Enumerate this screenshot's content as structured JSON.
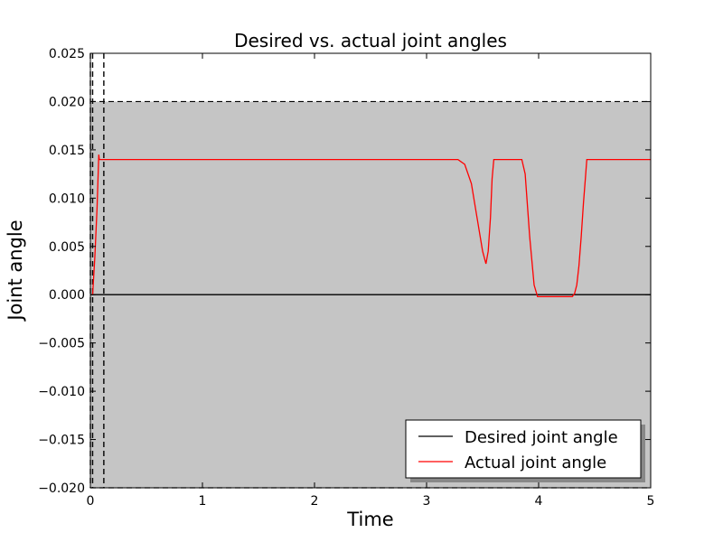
{
  "chart_data": {
    "type": "line",
    "title": "Desired vs. actual joint angles",
    "xlabel": "Time",
    "ylabel": "Joint angle",
    "xlim": [
      0,
      5
    ],
    "ylim": [
      -0.02,
      0.025
    ],
    "xticks": [
      "0",
      "1",
      "2",
      "3",
      "4",
      "5"
    ],
    "yticks": [
      "−0.020",
      "−0.015",
      "−0.010",
      "−0.005",
      "0.000",
      "0.005",
      "0.010",
      "0.015",
      "0.020",
      "0.025"
    ],
    "ytick_values": [
      -0.02,
      -0.015,
      -0.01,
      -0.005,
      0.0,
      0.005,
      0.01,
      0.015,
      0.02,
      0.025
    ],
    "xtick_values": [
      0,
      1,
      2,
      3,
      4,
      5
    ],
    "grid": false,
    "legend_position": "bottom-right",
    "shaded_band": {
      "x_from": 0.0,
      "x_to": 5.0,
      "y_from": -0.02,
      "y_to": 0.02,
      "color": "#c5c5c5"
    },
    "reference_lines": {
      "horizontal_dashed_y": [
        0.02,
        -0.02
      ],
      "vertical_dashed_x": [
        0.0,
        0.02,
        0.12
      ]
    },
    "series": [
      {
        "name": "Desired joint angle",
        "color": "#000000",
        "x": [
          0,
          5
        ],
        "y": [
          0.0,
          0.0
        ]
      },
      {
        "name": "Actual joint angle",
        "color": "#ff0000",
        "x": [
          0.02,
          0.04,
          0.06,
          0.075,
          0.08,
          0.09,
          0.1,
          0.5,
          1.0,
          1.5,
          2.0,
          2.5,
          3.0,
          3.1,
          3.2,
          3.28,
          3.34,
          3.4,
          3.45,
          3.5,
          3.53,
          3.55,
          3.57,
          3.585,
          3.6,
          3.7,
          3.8,
          3.85,
          3.88,
          3.92,
          3.96,
          3.99,
          4.1,
          4.2,
          4.3,
          4.32,
          4.34,
          4.36,
          4.38,
          4.4,
          4.42,
          4.43,
          4.45,
          4.6,
          4.8,
          5.0
        ],
        "y": [
          0.0,
          0.004,
          0.009,
          0.0145,
          0.014,
          0.014,
          0.014,
          0.014,
          0.014,
          0.014,
          0.014,
          0.014,
          0.014,
          0.014,
          0.014,
          0.014,
          0.0135,
          0.0115,
          0.008,
          0.0045,
          0.0032,
          0.0045,
          0.008,
          0.012,
          0.014,
          0.014,
          0.014,
          0.014,
          0.0125,
          0.006,
          0.001,
          -0.0002,
          -0.0002,
          -0.0002,
          -0.0002,
          0.0001,
          0.001,
          0.003,
          0.006,
          0.0095,
          0.0125,
          0.014,
          0.014,
          0.014,
          0.014,
          0.014
        ]
      }
    ]
  }
}
